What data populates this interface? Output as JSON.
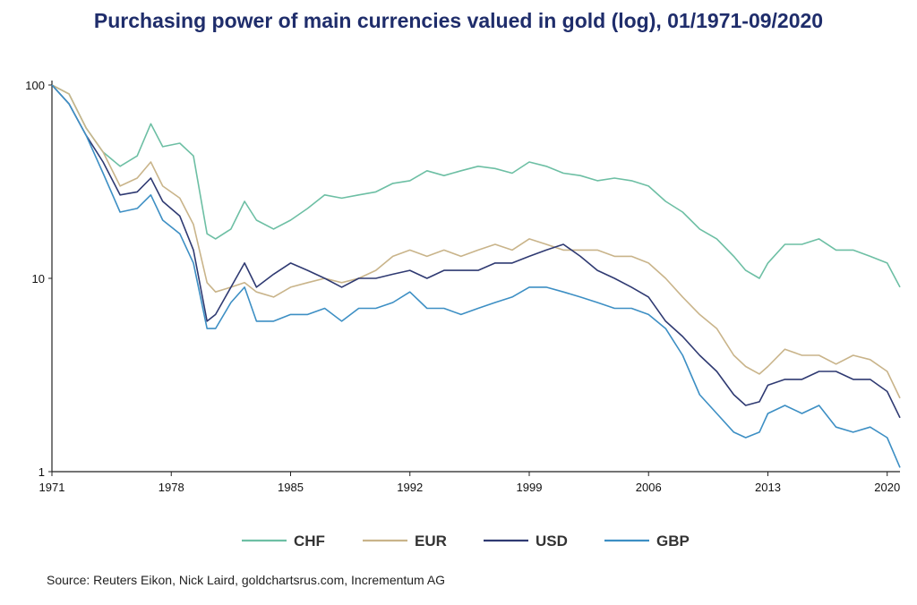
{
  "title": "Purchasing power of main currencies valued in gold (log), 01/1971-09/2020",
  "source": "Source: Reuters Eikon, Nick Laird, goldchartsrus.com, Incrementum AG",
  "chart_data": {
    "type": "line",
    "title": "Purchasing power of main currencies valued in gold (log), 01/1971-09/2020",
    "xlabel": "",
    "ylabel": "",
    "y_scale": "log",
    "ylim": [
      1,
      100
    ],
    "xlim": [
      1971,
      2020.75
    ],
    "x_ticks": [
      1971,
      1978,
      1985,
      1992,
      1999,
      2006,
      2013,
      2020
    ],
    "y_ticks": [
      1,
      10,
      100
    ],
    "legend_position": "bottom",
    "series": [
      {
        "name": "CHF",
        "color": "#6dbfa4",
        "x": [
          1971,
          1972,
          1973,
          1974,
          1975,
          1976,
          1976.8,
          1977.5,
          1978.5,
          1979.3,
          1980.1,
          1980.6,
          1981.5,
          1982.3,
          1983,
          1984,
          1985,
          1986,
          1987,
          1988,
          1989,
          1990,
          1991,
          1992,
          1993,
          1994,
          1995,
          1996,
          1997,
          1998,
          1999,
          2000,
          2001,
          2002,
          2003,
          2004,
          2005,
          2006,
          2007,
          2008,
          2009,
          2010,
          2011,
          2011.7,
          2012.5,
          2013,
          2014,
          2015,
          2016,
          2017,
          2018,
          2019,
          2020,
          2020.75
        ],
        "y": [
          100,
          90,
          60,
          45,
          38,
          43,
          63,
          48,
          50,
          43,
          17,
          16,
          18,
          25,
          20,
          18,
          20,
          23,
          27,
          26,
          27,
          28,
          31,
          32,
          36,
          34,
          36,
          38,
          37,
          35,
          40,
          38,
          35,
          34,
          32,
          33,
          32,
          30,
          25,
          22,
          18,
          16,
          13,
          11,
          10,
          12,
          15,
          15,
          16,
          14,
          14,
          13,
          12,
          9
        ]
      },
      {
        "name": "EUR",
        "color": "#c9b48a",
        "x": [
          1971,
          1972,
          1973,
          1974,
          1975,
          1976,
          1976.8,
          1977.5,
          1978.5,
          1979.3,
          1980.1,
          1980.6,
          1981.5,
          1982.3,
          1983,
          1984,
          1985,
          1986,
          1987,
          1988,
          1989,
          1990,
          1991,
          1992,
          1993,
          1994,
          1995,
          1996,
          1997,
          1998,
          1999,
          2000,
          2001,
          2002,
          2003,
          2004,
          2005,
          2006,
          2007,
          2008,
          2009,
          2010,
          2011,
          2011.7,
          2012.5,
          2013,
          2014,
          2015,
          2016,
          2017,
          2018,
          2019,
          2020,
          2020.75
        ],
        "y": [
          100,
          90,
          60,
          45,
          30,
          33,
          40,
          30,
          26,
          19,
          9.5,
          8.5,
          9,
          9.5,
          8.5,
          8,
          9,
          9.5,
          10,
          9.5,
          10,
          11,
          13,
          14,
          13,
          14,
          13,
          14,
          15,
          14,
          16,
          15,
          14,
          14,
          14,
          13,
          13,
          12,
          10,
          8,
          6.5,
          5.5,
          4,
          3.5,
          3.2,
          3.5,
          4.3,
          4,
          4,
          3.6,
          4,
          3.8,
          3.3,
          2.4
        ]
      },
      {
        "name": "USD",
        "color": "#2f3a72",
        "x": [
          1971,
          1972,
          1973,
          1974,
          1975,
          1976,
          1976.8,
          1977.5,
          1978.5,
          1979.3,
          1980.1,
          1980.6,
          1981.5,
          1982.3,
          1983,
          1984,
          1985,
          1986,
          1987,
          1988,
          1989,
          1990,
          1991,
          1992,
          1993,
          1994,
          1995,
          1996,
          1997,
          1998,
          1999,
          2000,
          2001,
          2002,
          2003,
          2004,
          2005,
          2006,
          2007,
          2008,
          2009,
          2010,
          2011,
          2011.7,
          2012.5,
          2013,
          2014,
          2015,
          2016,
          2017,
          2018,
          2019,
          2020,
          2020.75
        ],
        "y": [
          100,
          80,
          55,
          40,
          27,
          28,
          33,
          25,
          21,
          14,
          6,
          6.5,
          9,
          12,
          9,
          10.5,
          12,
          11,
          10,
          9,
          10,
          10,
          10.5,
          11,
          10,
          11,
          11,
          11,
          12,
          12,
          13,
          14,
          15,
          13,
          11,
          10,
          9,
          8,
          6,
          5,
          4,
          3.3,
          2.5,
          2.2,
          2.3,
          2.8,
          3,
          3,
          3.3,
          3.3,
          3,
          3,
          2.6,
          1.9
        ]
      },
      {
        "name": "GBP",
        "color": "#3d8fc4",
        "x": [
          1971,
          1972,
          1973,
          1974,
          1975,
          1976,
          1976.8,
          1977.5,
          1978.5,
          1979.3,
          1980.1,
          1980.6,
          1981.5,
          1982.3,
          1983,
          1984,
          1985,
          1986,
          1987,
          1988,
          1989,
          1990,
          1991,
          1992,
          1993,
          1994,
          1995,
          1996,
          1997,
          1998,
          1999,
          2000,
          2001,
          2002,
          2003,
          2004,
          2005,
          2006,
          2007,
          2008,
          2009,
          2010,
          2011,
          2011.7,
          2012.5,
          2013,
          2014,
          2015,
          2016,
          2017,
          2018,
          2019,
          2020,
          2020.75
        ],
        "y": [
          100,
          80,
          55,
          35,
          22,
          23,
          27,
          20,
          17,
          12,
          5.5,
          5.5,
          7.5,
          9,
          6,
          6,
          6.5,
          6.5,
          7,
          6,
          7,
          7,
          7.5,
          8.5,
          7,
          7,
          6.5,
          7,
          7.5,
          8,
          9,
          9,
          8.5,
          8,
          7.5,
          7,
          7,
          6.5,
          5.5,
          4,
          2.5,
          2,
          1.6,
          1.5,
          1.6,
          2,
          2.2,
          2,
          2.2,
          1.7,
          1.6,
          1.7,
          1.5,
          1.05
        ]
      }
    ]
  }
}
